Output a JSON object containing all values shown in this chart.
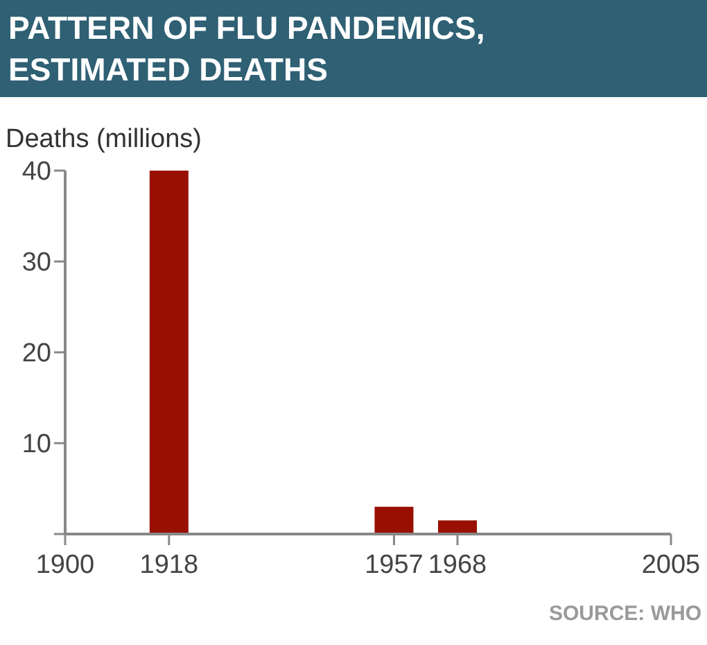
{
  "chart_data": {
    "type": "bar",
    "title": "PATTERN OF FLU PANDEMICS, ESTIMATED DEATHS",
    "ylabel": "Deaths (millions)",
    "x": [
      1918,
      1957,
      1968
    ],
    "values": [
      40,
      3,
      1.5
    ],
    "color": "#990f02",
    "xlim": [
      1900,
      2005
    ],
    "xticks": [
      1900,
      1918,
      1957,
      1968,
      2005
    ],
    "ylim": [
      0,
      40
    ],
    "yticks": [
      {
        "value": 0,
        "label": null
      },
      10,
      20,
      30,
      40
    ],
    "annotations": [
      "SOURCE: WHO"
    ]
  }
}
